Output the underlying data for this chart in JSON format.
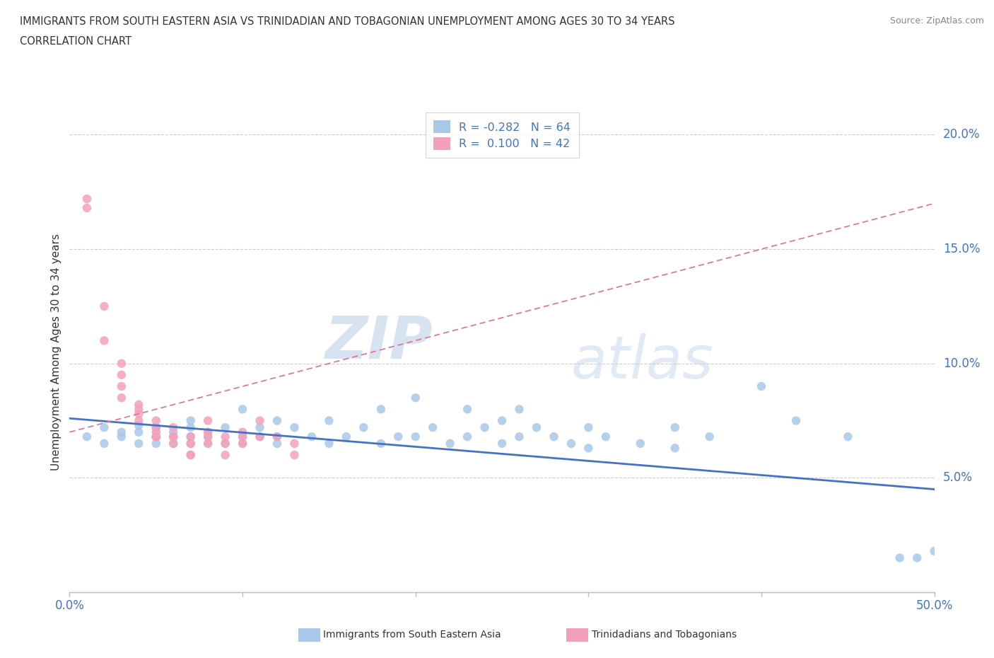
{
  "title_line1": "IMMIGRANTS FROM SOUTH EASTERN ASIA VS TRINIDADIAN AND TOBAGONIAN UNEMPLOYMENT AMONG AGES 30 TO 34 YEARS",
  "title_line2": "CORRELATION CHART",
  "source_text": "Source: ZipAtlas.com",
  "ylabel": "Unemployment Among Ages 30 to 34 years",
  "xlim": [
    0.0,
    0.5
  ],
  "ylim": [
    0.0,
    0.21
  ],
  "xticks": [
    0.0,
    0.1,
    0.2,
    0.3,
    0.4,
    0.5
  ],
  "xticklabels": [
    "0.0%",
    "",
    "",
    "",
    "",
    "50.0%"
  ],
  "yticks_right": [
    0.05,
    0.1,
    0.15,
    0.2
  ],
  "ytick_right_labels": [
    "5.0%",
    "10.0%",
    "15.0%",
    "20.0%"
  ],
  "color_blue": "#a8c8e8",
  "color_pink": "#f4a0b8",
  "line_color_blue": "#4472c4",
  "line_color_pink": "#e07090",
  "watermark_zip": "ZIP",
  "watermark_atlas": "atlas",
  "blue_scatter": [
    [
      0.01,
      0.068
    ],
    [
      0.02,
      0.072
    ],
    [
      0.02,
      0.065
    ],
    [
      0.03,
      0.07
    ],
    [
      0.03,
      0.068
    ],
    [
      0.04,
      0.073
    ],
    [
      0.04,
      0.065
    ],
    [
      0.04,
      0.07
    ],
    [
      0.05,
      0.068
    ],
    [
      0.05,
      0.072
    ],
    [
      0.05,
      0.065
    ],
    [
      0.06,
      0.07
    ],
    [
      0.06,
      0.068
    ],
    [
      0.06,
      0.065
    ],
    [
      0.07,
      0.075
    ],
    [
      0.07,
      0.068
    ],
    [
      0.07,
      0.072
    ],
    [
      0.08,
      0.065
    ],
    [
      0.08,
      0.07
    ],
    [
      0.08,
      0.068
    ],
    [
      0.09,
      0.072
    ],
    [
      0.09,
      0.065
    ],
    [
      0.1,
      0.08
    ],
    [
      0.1,
      0.068
    ],
    [
      0.1,
      0.065
    ],
    [
      0.11,
      0.072
    ],
    [
      0.11,
      0.068
    ],
    [
      0.12,
      0.075
    ],
    [
      0.12,
      0.065
    ],
    [
      0.12,
      0.068
    ],
    [
      0.13,
      0.072
    ],
    [
      0.14,
      0.068
    ],
    [
      0.15,
      0.075
    ],
    [
      0.15,
      0.065
    ],
    [
      0.16,
      0.068
    ],
    [
      0.17,
      0.072
    ],
    [
      0.18,
      0.08
    ],
    [
      0.18,
      0.065
    ],
    [
      0.19,
      0.068
    ],
    [
      0.2,
      0.085
    ],
    [
      0.2,
      0.068
    ],
    [
      0.21,
      0.072
    ],
    [
      0.22,
      0.065
    ],
    [
      0.23,
      0.08
    ],
    [
      0.23,
      0.068
    ],
    [
      0.24,
      0.072
    ],
    [
      0.25,
      0.075
    ],
    [
      0.25,
      0.065
    ],
    [
      0.26,
      0.08
    ],
    [
      0.26,
      0.068
    ],
    [
      0.27,
      0.072
    ],
    [
      0.28,
      0.068
    ],
    [
      0.29,
      0.065
    ],
    [
      0.3,
      0.072
    ],
    [
      0.3,
      0.063
    ],
    [
      0.31,
      0.068
    ],
    [
      0.33,
      0.065
    ],
    [
      0.35,
      0.072
    ],
    [
      0.35,
      0.063
    ],
    [
      0.37,
      0.068
    ],
    [
      0.4,
      0.09
    ],
    [
      0.42,
      0.075
    ],
    [
      0.45,
      0.068
    ],
    [
      0.48,
      0.015
    ],
    [
      0.49,
      0.015
    ],
    [
      0.5,
      0.018
    ]
  ],
  "pink_scatter": [
    [
      0.01,
      0.172
    ],
    [
      0.01,
      0.168
    ],
    [
      0.02,
      0.125
    ],
    [
      0.02,
      0.11
    ],
    [
      0.03,
      0.1
    ],
    [
      0.03,
      0.095
    ],
    [
      0.03,
      0.09
    ],
    [
      0.03,
      0.085
    ],
    [
      0.04,
      0.082
    ],
    [
      0.04,
      0.08
    ],
    [
      0.04,
      0.078
    ],
    [
      0.04,
      0.075
    ],
    [
      0.05,
      0.075
    ],
    [
      0.05,
      0.072
    ],
    [
      0.05,
      0.07
    ],
    [
      0.05,
      0.068
    ],
    [
      0.05,
      0.068
    ],
    [
      0.05,
      0.068
    ],
    [
      0.06,
      0.072
    ],
    [
      0.06,
      0.068
    ],
    [
      0.06,
      0.065
    ],
    [
      0.06,
      0.068
    ],
    [
      0.07,
      0.068
    ],
    [
      0.07,
      0.065
    ],
    [
      0.07,
      0.065
    ],
    [
      0.07,
      0.06
    ],
    [
      0.07,
      0.06
    ],
    [
      0.08,
      0.075
    ],
    [
      0.08,
      0.07
    ],
    [
      0.08,
      0.068
    ],
    [
      0.08,
      0.065
    ],
    [
      0.09,
      0.068
    ],
    [
      0.09,
      0.065
    ],
    [
      0.09,
      0.06
    ],
    [
      0.1,
      0.07
    ],
    [
      0.1,
      0.068
    ],
    [
      0.1,
      0.065
    ],
    [
      0.11,
      0.075
    ],
    [
      0.11,
      0.068
    ],
    [
      0.12,
      0.068
    ],
    [
      0.13,
      0.065
    ],
    [
      0.13,
      0.06
    ]
  ],
  "blue_line": [
    [
      0.0,
      0.076
    ],
    [
      0.5,
      0.045
    ]
  ],
  "pink_line": [
    [
      0.0,
      0.07
    ],
    [
      0.5,
      0.17
    ]
  ]
}
